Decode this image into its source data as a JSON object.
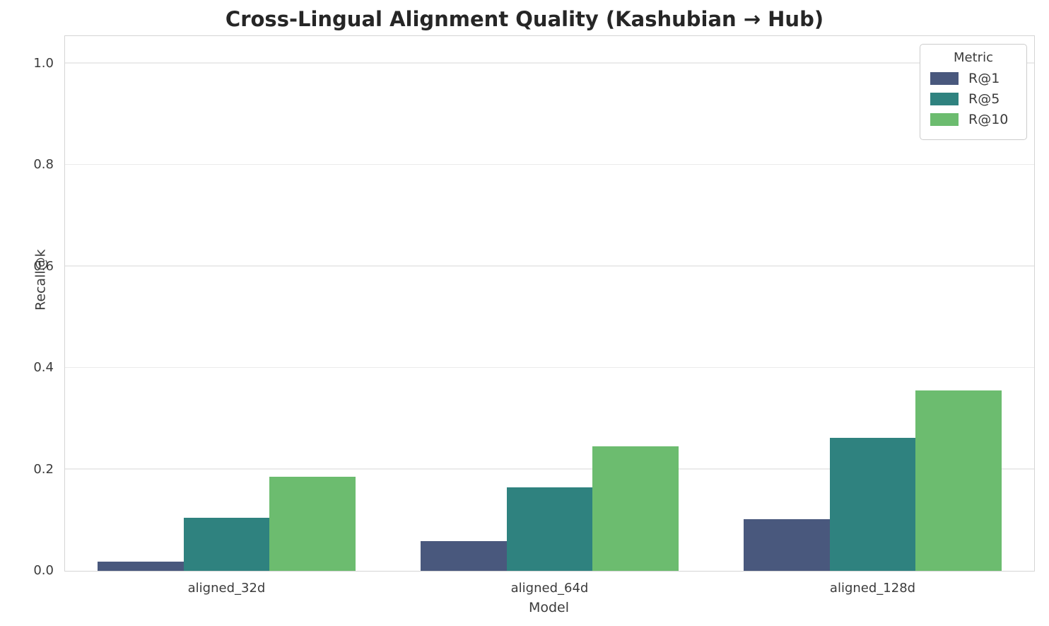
{
  "chart_data": {
    "type": "bar",
    "title": "Cross-Lingual Alignment Quality (Kashubian → Hub)",
    "xlabel": "Model",
    "ylabel": "Recall@k",
    "categories": [
      "aligned_32d",
      "aligned_64d",
      "aligned_128d"
    ],
    "series": [
      {
        "name": "R@1",
        "color": "#49587d",
        "values": [
          0.018,
          0.058,
          0.102
        ]
      },
      {
        "name": "R@5",
        "color": "#2f827f",
        "values": [
          0.105,
          0.165,
          0.262
        ]
      },
      {
        "name": "R@10",
        "color": "#6cbc6f",
        "values": [
          0.186,
          0.246,
          0.355
        ]
      }
    ],
    "ylim": [
      0,
      1.054
    ],
    "yticks": [
      0.0,
      0.2,
      0.4,
      0.6,
      0.8,
      1.0
    ],
    "ytick_labels": [
      "0.0",
      "0.2",
      "0.4",
      "0.6",
      "0.8",
      "1.0"
    ],
    "grid": "horizontal",
    "legend": {
      "title": "Metric",
      "position": "upper right"
    },
    "colors": {
      "grid": "#ebebeb",
      "spine": "#d5d5d5",
      "text": "#3b3b3b",
      "title_text": "#262626",
      "background": "#ffffff"
    }
  }
}
